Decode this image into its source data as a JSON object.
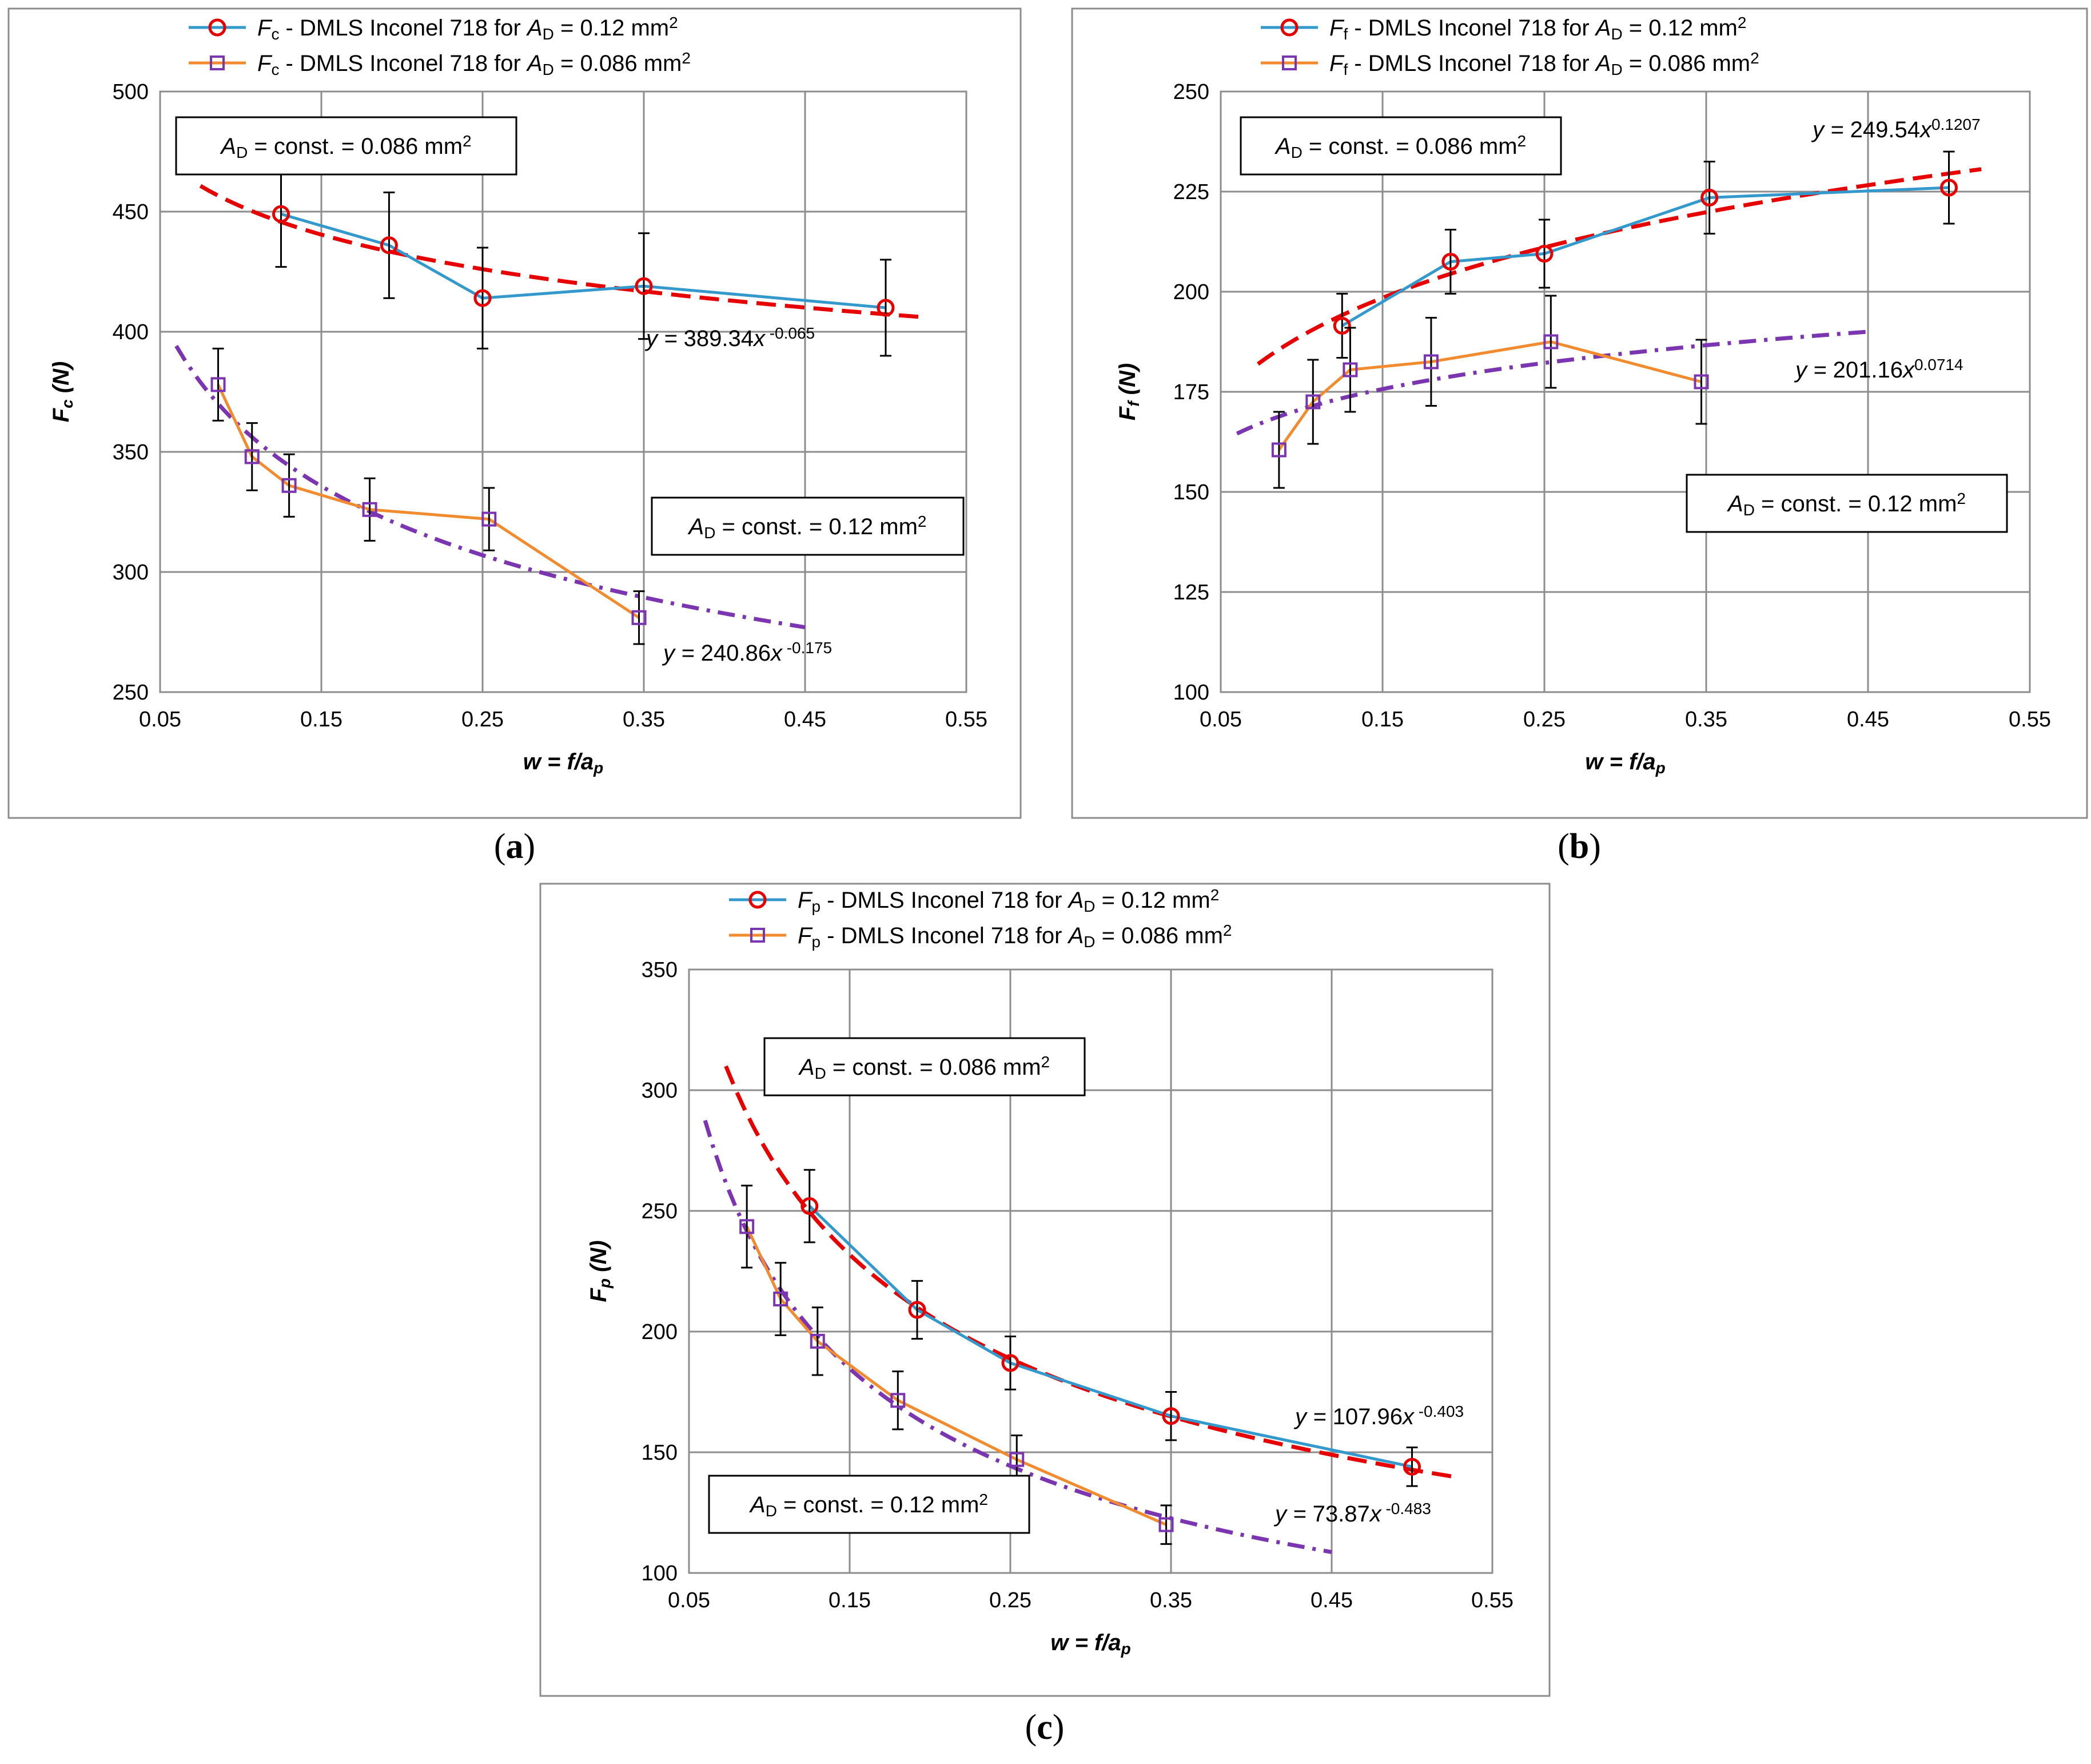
{
  "colors": {
    "series_012": "#3399cc",
    "series_0086": "#f28a2e",
    "marker_012": "#e60000",
    "marker_0086": "#7b35b0",
    "trend_012": "#e60000",
    "trend_0086": "#7b35b0",
    "grid": "#8c8c8c"
  },
  "chart_data": [
    {
      "type": "line",
      "panel_label": "(a)",
      "xlabel": "w = f/a",
      "xlabel_sub": "p",
      "ylabel": "F",
      "ylabel_sub": "c",
      "ylabel_unit": " (N)",
      "xlim": [
        0.05,
        0.55
      ],
      "ylim": [
        250,
        500
      ],
      "x_ticks": [
        "0.05",
        "0.15",
        "0.25",
        "0.35",
        "0.45",
        "0.55"
      ],
      "y_ticks": [
        "250",
        "300",
        "350",
        "400",
        "450",
        "500"
      ],
      "grid": true,
      "legend_position": "top",
      "series": [
        {
          "legend": {
            "sym": "F",
            "sub": "c",
            "mid": " - DMLS Inconel 718 for ",
            "ad": "A",
            "adsub": "D",
            "val": " = 0.12 mm",
            "sup": "2"
          },
          "marker": "circle",
          "x": [
            0.125,
            0.192,
            0.25,
            0.35,
            0.5
          ],
          "y": [
            449,
            436,
            414,
            419,
            410
          ],
          "err": [
            22,
            22,
            21,
            22,
            20
          ]
        },
        {
          "legend": {
            "sym": "F",
            "sub": "c",
            "mid": " - DMLS Inconel 718 for ",
            "ad": "A",
            "adsub": "D",
            "val": " = 0.086 mm",
            "sup": "2"
          },
          "marker": "square",
          "x": [
            0.086,
            0.107,
            0.13,
            0.18,
            0.254,
            0.347
          ],
          "y": [
            378,
            348,
            336,
            326,
            322,
            281
          ],
          "err": [
            15,
            14,
            13,
            13,
            13,
            11
          ]
        }
      ],
      "trendlines": [
        {
          "coef": 389.34,
          "exp": -0.065,
          "x_range": [
            0.075,
            0.525
          ],
          "style": "dash",
          "label": {
            "pre": "y = ",
            "mid": "389.34x",
            "sup": " -0.065"
          }
        },
        {
          "coef": 240.86,
          "exp": -0.175,
          "x_range": [
            0.06,
            0.45
          ],
          "style": "dashdot",
          "label": {
            "pre": "y = ",
            "mid": "240.86x",
            "sup": " -0.175"
          }
        }
      ],
      "boxes": [
        {
          "pre": "A",
          "sub": "D",
          "mid": " = const. = 0.086 mm",
          "sup": "2"
        },
        {
          "pre": "A",
          "sub": "D",
          "mid": " = const. = 0.12 mm",
          "sup": "2"
        }
      ]
    },
    {
      "type": "line",
      "panel_label": "(b)",
      "xlabel": "w = f/a",
      "xlabel_sub": "p",
      "ylabel": "F",
      "ylabel_sub": "f",
      "ylabel_unit": " (N)",
      "xlim": [
        0.05,
        0.55
      ],
      "ylim": [
        100,
        250
      ],
      "x_ticks": [
        "0.05",
        "0.15",
        "0.25",
        "0.35",
        "0.45",
        "0.55"
      ],
      "y_ticks": [
        "100",
        "125",
        "150",
        "175",
        "200",
        "225",
        "250"
      ],
      "grid": true,
      "legend_position": "top",
      "series": [
        {
          "legend": {
            "sym": "F",
            "sub": "f",
            "mid": " - DMLS Inconel 718 for ",
            "ad": "A",
            "adsub": "D",
            "val": " = 0.12 mm",
            "sup": "2"
          },
          "marker": "circle",
          "x": [
            0.125,
            0.192,
            0.25,
            0.352,
            0.5
          ],
          "y": [
            191.5,
            207.5,
            209.5,
            223.5,
            226
          ],
          "err": [
            8,
            8,
            8.5,
            9,
            9
          ]
        },
        {
          "legend": {
            "sym": "F",
            "sub": "f",
            "mid": " - DMLS Inconel 718 for ",
            "ad": "A",
            "adsub": "D",
            "val": " = 0.086 mm",
            "sup": "2"
          },
          "marker": "square",
          "x": [
            0.086,
            0.107,
            0.13,
            0.18,
            0.254,
            0.347
          ],
          "y": [
            160.5,
            172.5,
            180.5,
            182.5,
            187.5,
            177.5
          ],
          "err": [
            9.5,
            10.5,
            10.5,
            11,
            11.5,
            10.5
          ]
        }
      ],
      "trendlines": [
        {
          "coef": 249.54,
          "exp": 0.1207,
          "x_range": [
            0.073,
            0.52
          ],
          "style": "dash",
          "label": {
            "pre": "y = ",
            "mid": "249.54x",
            "sup": "0.1207"
          }
        },
        {
          "coef": 201.16,
          "exp": 0.0714,
          "x_range": [
            0.06,
            0.45
          ],
          "style": "dashdot",
          "label": {
            "pre": "y = ",
            "mid": "201.16x",
            "sup": "0.0714"
          }
        }
      ],
      "boxes": [
        {
          "pre": "A",
          "sub": "D",
          "mid": " = const. = 0.086 mm",
          "sup": "2"
        },
        {
          "pre": "A",
          "sub": "D",
          "mid": " = const. = 0.12 mm",
          "sup": "2"
        }
      ]
    },
    {
      "type": "line",
      "panel_label": "(c)",
      "xlabel": "w = f/a",
      "xlabel_sub": "p",
      "ylabel": "F",
      "ylabel_sub": "p",
      "ylabel_unit": " (N)",
      "xlim": [
        0.05,
        0.55
      ],
      "ylim": [
        100,
        350
      ],
      "x_ticks": [
        "0.05",
        "0.15",
        "0.25",
        "0.35",
        "0.45",
        "0.55"
      ],
      "y_ticks": [
        "100",
        "150",
        "200",
        "250",
        "300",
        "350"
      ],
      "grid": true,
      "legend_position": "top",
      "series": [
        {
          "legend": {
            "sym": "F",
            "sub": "p",
            "mid": " - DMLS Inconel 718 for ",
            "ad": "A",
            "adsub": "D",
            "val": " = 0.12 mm",
            "sup": "2"
          },
          "marker": "circle",
          "x": [
            0.125,
            0.192,
            0.25,
            0.35,
            0.5
          ],
          "y": [
            252,
            209,
            187,
            165,
            144
          ],
          "err": [
            15,
            12,
            11,
            10,
            8
          ]
        },
        {
          "legend": {
            "sym": "F",
            "sub": "p",
            "mid": " - DMLS Inconel 718 for ",
            "ad": "A",
            "adsub": "D",
            "val": " = 0.086 mm",
            "sup": "2"
          },
          "marker": "square",
          "x": [
            0.086,
            0.107,
            0.13,
            0.18,
            0.254,
            0.347
          ],
          "y": [
            243.5,
            213.5,
            196,
            171.5,
            147,
            120
          ],
          "err": [
            17,
            15,
            14,
            12,
            10,
            8
          ]
        }
      ],
      "trendlines": [
        {
          "coef": 107.96,
          "exp": -0.403,
          "x_range": [
            0.073,
            0.525
          ],
          "style": "dash",
          "label": {
            "pre": "y = ",
            "mid": "107.96x",
            "sup": " -0.403"
          }
        },
        {
          "coef": 73.87,
          "exp": -0.483,
          "x_range": [
            0.06,
            0.45
          ],
          "style": "dashdot",
          "label": {
            "pre": "y = ",
            "mid": "73.87x",
            "sup": " -0.483"
          }
        }
      ],
      "boxes": [
        {
          "pre": "A",
          "sub": "D",
          "mid": " = const. = 0.086 mm",
          "sup": "2"
        },
        {
          "pre": "A",
          "sub": "D",
          "mid": " = const. = 0.12 mm",
          "sup": "2"
        }
      ]
    }
  ]
}
